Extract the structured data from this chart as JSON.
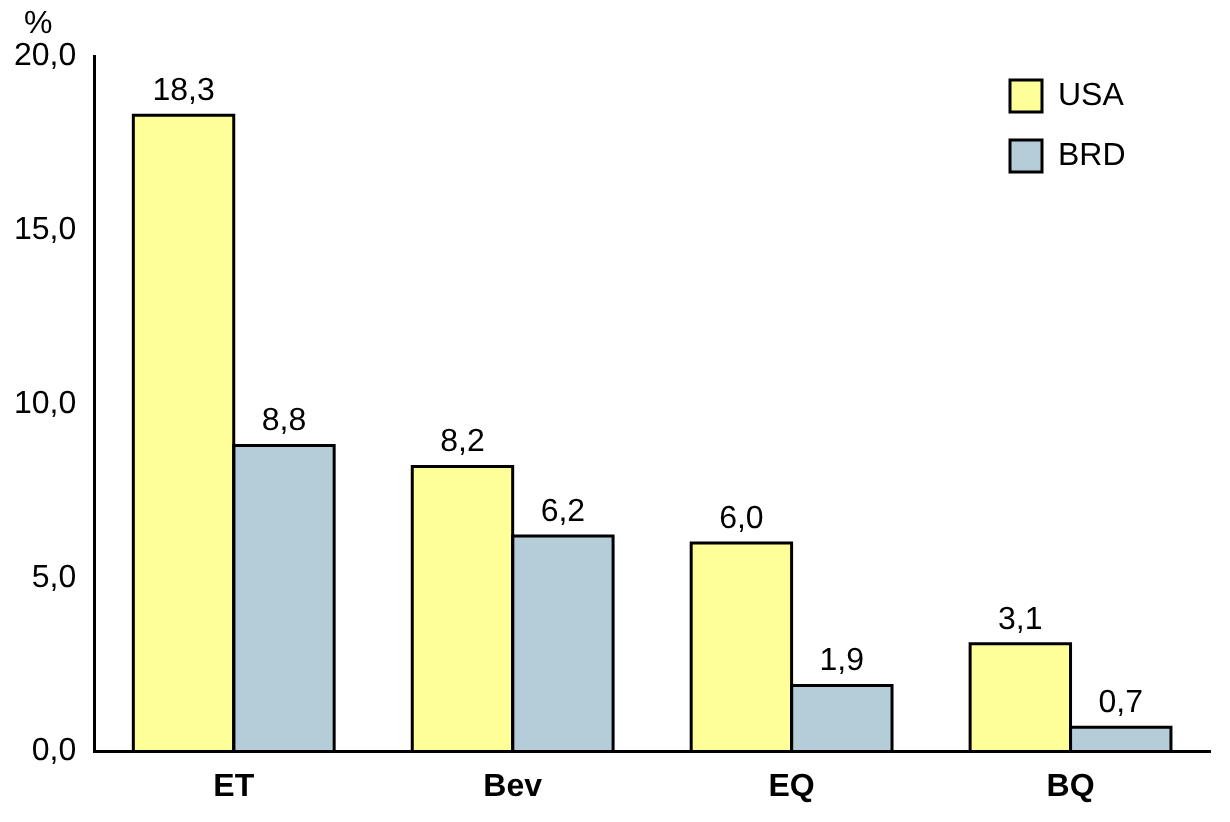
{
  "chart_data": {
    "type": "bar",
    "ylabel": "%",
    "categories": [
      "ET",
      "Bev",
      "EQ",
      "BQ"
    ],
    "series": [
      {
        "name": "USA",
        "color": "#ffff99",
        "values": [
          18.3,
          8.2,
          6.0,
          3.1
        ],
        "value_labels": [
          "18,3",
          "8,2",
          "6,0",
          "3,1"
        ]
      },
      {
        "name": "BRD",
        "color": "#b4cdd9",
        "values": [
          8.8,
          6.2,
          1.9,
          0.7
        ],
        "value_labels": [
          "8,8",
          "6,2",
          "1,9",
          "0,7"
        ]
      }
    ],
    "ylim": [
      0,
      20
    ],
    "yticks": [
      {
        "value": 0,
        "label": "0,0"
      },
      {
        "value": 5,
        "label": "5,0"
      },
      {
        "value": 10,
        "label": "10,0"
      },
      {
        "value": 15,
        "label": "15,0"
      },
      {
        "value": 20,
        "label": "20,0"
      }
    ],
    "grid": false,
    "legend": "top right"
  }
}
